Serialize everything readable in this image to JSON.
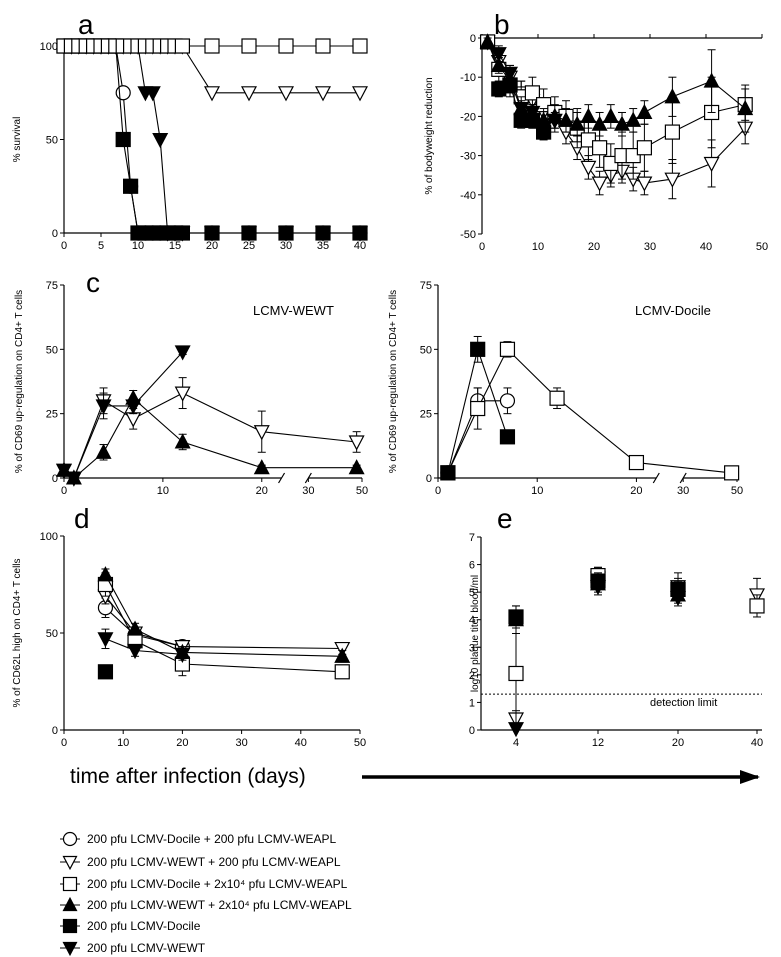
{
  "figure": {
    "bottom_xlabel": "time after infection (days)",
    "legend": [
      {
        "marker": "circle-open",
        "text": "200 pfu LCMV-Docile + 200 pfu LCMV-WEAPL"
      },
      {
        "marker": "tri-down-open",
        "text": "200 pfu LCMV-WEWT + 200 pfu LCMV-WEAPL"
      },
      {
        "marker": "square-open",
        "text": "200 pfu LCMV-Docile + 2x10⁴ pfu LCMV-WEAPL"
      },
      {
        "marker": "tri-up-filled",
        "text": "200 pfu LCMV-WEWT + 2x10⁴ pfu LCMV-WEAPL"
      },
      {
        "marker": "square-filled",
        "text": "200 pfu LCMV-Docile"
      },
      {
        "marker": "tri-down-filled",
        "text": "200 pfu LCMV-WEWT"
      }
    ]
  },
  "chart_data": [
    {
      "panel": "a",
      "type": "line",
      "ylabel": "% survival",
      "xlim": [
        0,
        40
      ],
      "ylim": [
        0,
        100
      ],
      "xticks": [
        0,
        5,
        10,
        15,
        20,
        25,
        30,
        35,
        40
      ],
      "yticks": [
        0,
        50,
        100
      ],
      "series": [
        {
          "marker": "circle-open",
          "x": [
            0,
            1,
            2,
            3,
            4,
            5,
            6,
            7,
            8,
            9,
            10,
            11,
            12,
            13,
            14,
            15,
            16,
            20,
            25,
            30,
            35,
            40
          ],
          "y": [
            100,
            100,
            100,
            100,
            100,
            100,
            100,
            100,
            75,
            25,
            0,
            0,
            0,
            0,
            0,
            0,
            0,
            0,
            0,
            0,
            0,
            0
          ]
        },
        {
          "marker": "square-filled",
          "x": [
            0,
            1,
            2,
            3,
            4,
            5,
            6,
            7,
            8,
            9,
            10,
            11,
            12,
            13,
            14,
            15,
            16,
            20,
            25,
            30,
            35,
            40
          ],
          "y": [
            100,
            100,
            100,
            100,
            100,
            100,
            100,
            100,
            50,
            25,
            0,
            0,
            0,
            0,
            0,
            0,
            0,
            0,
            0,
            0,
            0,
            0
          ]
        },
        {
          "marker": "tri-down-filled",
          "x": [
            0,
            1,
            2,
            3,
            4,
            5,
            6,
            7,
            8,
            9,
            10,
            11,
            12,
            13,
            14,
            15,
            16,
            20,
            25,
            30,
            35,
            40
          ],
          "y": [
            100,
            100,
            100,
            100,
            100,
            100,
            100,
            100,
            100,
            100,
            100,
            75,
            75,
            50,
            0,
            0,
            0,
            0,
            0,
            0,
            0,
            0
          ]
        },
        {
          "marker": "tri-down-open",
          "x": [
            0,
            1,
            2,
            3,
            4,
            5,
            6,
            7,
            8,
            9,
            10,
            11,
            12,
            13,
            14,
            15,
            16,
            20,
            25,
            30,
            35,
            40
          ],
          "y": [
            100,
            100,
            100,
            100,
            100,
            100,
            100,
            100,
            100,
            100,
            100,
            100,
            100,
            100,
            100,
            100,
            100,
            75,
            75,
            75,
            75,
            75
          ]
        },
        {
          "marker": "square-open",
          "x": [
            0,
            1,
            2,
            3,
            4,
            5,
            6,
            7,
            8,
            9,
            10,
            11,
            12,
            13,
            14,
            15,
            16,
            20,
            25,
            30,
            35,
            40
          ],
          "y": [
            100,
            100,
            100,
            100,
            100,
            100,
            100,
            100,
            100,
            100,
            100,
            100,
            100,
            100,
            100,
            100,
            100,
            100,
            100,
            100,
            100,
            100
          ]
        }
      ]
    },
    {
      "panel": "b",
      "type": "line",
      "ylabel": "% of bodyweight reduction",
      "xlim": [
        0,
        50
      ],
      "ylim": [
        -50,
        0
      ],
      "xticks": [
        0,
        10,
        20,
        30,
        40,
        50
      ],
      "yticks": [
        0,
        -10,
        -20,
        -30,
        -40,
        -50
      ],
      "series": [
        {
          "marker": "tri-down-open",
          "x": [
            1,
            3,
            5,
            7,
            9,
            11,
            13,
            15,
            17,
            19,
            21,
            23,
            25,
            27,
            29,
            34,
            41,
            47
          ],
          "y": [
            -1,
            -6,
            -10,
            -14,
            -16,
            -19,
            -21,
            -24,
            -28,
            -33,
            -37,
            -35,
            -34,
            -36,
            -37,
            -36,
            -32,
            -23
          ],
          "err": [
            1,
            2,
            3,
            3,
            3,
            3,
            3,
            3,
            3,
            3,
            3,
            3,
            3,
            3,
            3,
            5,
            6,
            4
          ]
        },
        {
          "marker": "square-open",
          "x": [
            1,
            3,
            5,
            7,
            9,
            11,
            13,
            15,
            17,
            19,
            21,
            23,
            25,
            27,
            29,
            34,
            41,
            47
          ],
          "y": [
            -1,
            -8,
            -12,
            -15,
            -14,
            -17,
            -19,
            -20,
            -23,
            -26,
            -28,
            -32,
            -30,
            -30,
            -28,
            -24,
            -19,
            -17
          ],
          "err": [
            1,
            3,
            3,
            4,
            4,
            4,
            4,
            4,
            5,
            5,
            5,
            5,
            6,
            6,
            6,
            8,
            9,
            4
          ]
        },
        {
          "marker": "tri-up-filled",
          "x": [
            1,
            3,
            5,
            7,
            9,
            11,
            13,
            15,
            17,
            19,
            21,
            23,
            25,
            27,
            29,
            34,
            41,
            47
          ],
          "y": [
            -1,
            -7,
            -11,
            -18,
            -20,
            -21,
            -20,
            -21,
            -22,
            -20,
            -22,
            -20,
            -22,
            -21,
            -19,
            -15,
            -11,
            -18
          ],
          "err": [
            1,
            2,
            3,
            3,
            3,
            3,
            3,
            3,
            3,
            3,
            3,
            3,
            3,
            3,
            3,
            5,
            8,
            6
          ]
        },
        {
          "marker": "square-filled",
          "x": [
            3,
            5,
            7,
            9,
            11
          ],
          "y": [
            -13,
            -12,
            -21,
            -21,
            -24
          ],
          "err": [
            2,
            2,
            2,
            2,
            2
          ]
        },
        {
          "marker": "tri-down-filled",
          "x": [
            3,
            5,
            7,
            9,
            11,
            13
          ],
          "y": [
            -4,
            -9,
            -18,
            -19,
            -23,
            -21
          ],
          "err": [
            2,
            2,
            2,
            2,
            2,
            2
          ]
        }
      ]
    },
    {
      "panel": "c-left",
      "type": "line",
      "title": "LCMV-WEWT",
      "ylabel": "% of CD69 up-regulation on CD4+ T cells",
      "xlim": [
        0,
        50
      ],
      "ylim": [
        0,
        75
      ],
      "axis_break": [
        22,
        30
      ],
      "xticks": [
        0,
        10,
        20,
        30,
        50
      ],
      "yticks": [
        0,
        25,
        50,
        75
      ],
      "series": [
        {
          "marker": "tri-down-open",
          "x": [
            0,
            1,
            4,
            7,
            12,
            20,
            48
          ],
          "y": [
            3,
            0,
            30,
            23,
            33,
            18,
            14
          ],
          "err": [
            1,
            1,
            5,
            4,
            6,
            8,
            4
          ]
        },
        {
          "marker": "tri-up-filled",
          "x": [
            0,
            1,
            4,
            7,
            12,
            20,
            48
          ],
          "y": [
            3,
            0,
            10,
            31,
            14,
            4,
            4
          ],
          "err": [
            1,
            1,
            3,
            3,
            3,
            1,
            1
          ]
        },
        {
          "marker": "tri-down-filled",
          "x": [
            0,
            1,
            4,
            7,
            12
          ],
          "y": [
            3,
            0,
            28,
            28,
            49
          ],
          "err": [
            1,
            1,
            5,
            3,
            1
          ]
        }
      ]
    },
    {
      "panel": "c-right",
      "type": "line",
      "title": "LCMV-Docile",
      "ylabel": "% of CD69 up-regulation on CD4+ T cells",
      "xlim": [
        0,
        50
      ],
      "ylim": [
        0,
        75
      ],
      "axis_break": [
        22,
        30
      ],
      "xticks": [
        0,
        10,
        20,
        30,
        50
      ],
      "yticks": [
        0,
        25,
        50,
        75
      ],
      "series": [
        {
          "marker": "circle-open",
          "x": [
            1,
            4,
            7
          ],
          "y": [
            2,
            30,
            30
          ],
          "err": [
            1,
            5,
            5
          ]
        },
        {
          "marker": "square-open",
          "x": [
            1,
            4,
            7,
            12,
            20,
            48
          ],
          "y": [
            2,
            27,
            50,
            31,
            6,
            2
          ],
          "err": [
            1,
            8,
            3,
            4,
            1,
            1
          ]
        },
        {
          "marker": "square-filled",
          "x": [
            1,
            4,
            7
          ],
          "y": [
            2,
            50,
            16
          ],
          "err": [
            1,
            5,
            2
          ]
        }
      ]
    },
    {
      "panel": "d",
      "type": "line",
      "ylabel": "% of CD62L high on CD4+ T cells",
      "xlim": [
        0,
        50
      ],
      "ylim": [
        0,
        100
      ],
      "xticks": [
        0,
        10,
        20,
        30,
        40,
        50
      ],
      "yticks": [
        0,
        50,
        100
      ],
      "series": [
        {
          "marker": "circle-open",
          "x": [
            7,
            12,
            20
          ],
          "y": [
            63,
            49,
            43
          ],
          "err": [
            5,
            3,
            3
          ]
        },
        {
          "marker": "tri-down-open",
          "x": [
            7,
            12,
            20,
            47
          ],
          "y": [
            69,
            50,
            43,
            42
          ],
          "err": [
            4,
            3,
            3,
            3
          ]
        },
        {
          "marker": "square-open",
          "x": [
            7,
            12,
            20,
            47
          ],
          "y": [
            75,
            46,
            34,
            30
          ],
          "err": [
            6,
            4,
            6,
            2
          ]
        },
        {
          "marker": "tri-up-filled",
          "x": [
            7,
            12,
            20,
            47
          ],
          "y": [
            80,
            52,
            40,
            38
          ],
          "err": [
            3,
            3,
            3,
            3
          ]
        },
        {
          "marker": "square-filled",
          "x": [
            7
          ],
          "y": [
            30
          ],
          "err": [
            2
          ]
        },
        {
          "marker": "tri-down-filled",
          "x": [
            7,
            12,
            20
          ],
          "y": [
            47,
            41,
            39
          ],
          "err": [
            5,
            3,
            3
          ]
        }
      ]
    },
    {
      "panel": "e",
      "type": "scatter",
      "ylabel": "log10 plaque titer blood/ml",
      "categories": [
        "4",
        "12",
        "20",
        "40"
      ],
      "ylim": [
        0,
        7
      ],
      "yticks": [
        0,
        1,
        2,
        3,
        4,
        5,
        6,
        7
      ],
      "annotation": "detection limit",
      "detection_limit": 1.3,
      "series": [
        {
          "marker": "tri-down-open",
          "x": [
            0,
            1,
            2,
            3
          ],
          "y": [
            0.4,
            5.5,
            5.2,
            4.9
          ],
          "err": [
            0.3,
            0.4,
            0.5,
            0.6
          ]
        },
        {
          "marker": "square-open",
          "x": [
            0,
            1,
            2,
            3
          ],
          "y": [
            2.05,
            5.6,
            5.1,
            4.5
          ],
          "err": [
            1.8,
            0.3,
            0.4,
            0.4
          ]
        },
        {
          "marker": "tri-up-filled",
          "x": [
            0,
            1,
            2
          ],
          "y": [
            4.0,
            5.3,
            4.9
          ],
          "err": [
            0.5,
            0.3,
            0.3
          ]
        },
        {
          "marker": "square-filled",
          "x": [
            0,
            1,
            2
          ],
          "y": [
            4.1,
            5.4,
            5.1
          ],
          "err": [
            0.4,
            0.3,
            0.3
          ]
        },
        {
          "marker": "tri-down-filled",
          "x": [
            0,
            1,
            2
          ],
          "y": [
            0.05,
            5.2,
            4.8
          ],
          "err": [
            0.05,
            0.3,
            0.3
          ]
        }
      ]
    }
  ]
}
